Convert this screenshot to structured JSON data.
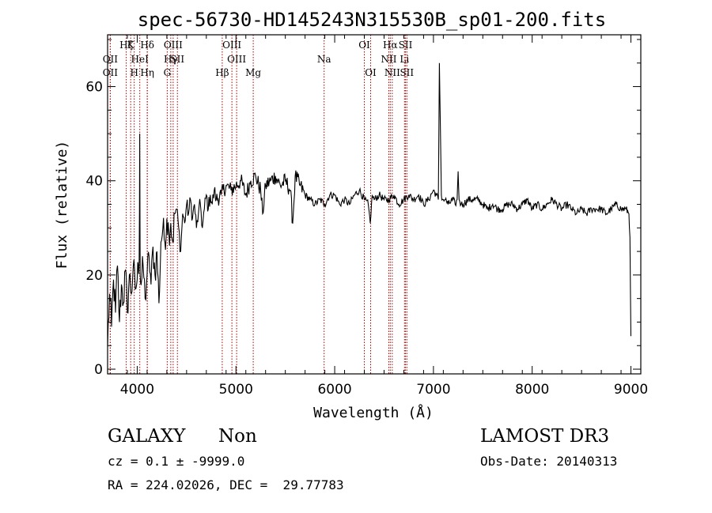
{
  "chart_data": {
    "type": "line",
    "title": "spec-56730-HD145243N315530B_sp01-200.fits",
    "xlabel": "Wavelength (Å)",
    "ylabel": "Flux (relative)",
    "xlim": [
      3700,
      9100
    ],
    "ylim": [
      -1,
      71
    ],
    "xticks": [
      4000,
      5000,
      6000,
      7000,
      8000,
      9000
    ],
    "yticks": [
      0,
      20,
      40,
      60
    ],
    "series": [
      {
        "name": "spectrum",
        "x": [
          3700,
          3720,
          3740,
          3760,
          3780,
          3800,
          3820,
          3840,
          3860,
          3880,
          3900,
          3920,
          3940,
          3960,
          3980,
          4000,
          4010,
          4020,
          4025,
          4030,
          4040,
          4060,
          4080,
          4100,
          4120,
          4140,
          4160,
          4180,
          4200,
          4220,
          4240,
          4260,
          4280,
          4300,
          4320,
          4340,
          4360,
          4380,
          4400,
          4420,
          4440,
          4460,
          4480,
          4500,
          4520,
          4540,
          4560,
          4580,
          4600,
          4620,
          4640,
          4660,
          4680,
          4700,
          4720,
          4740,
          4760,
          4780,
          4800,
          4850,
          4900,
          4950,
          5000,
          5050,
          5100,
          5150,
          5200,
          5250,
          5270,
          5300,
          5350,
          5400,
          5450,
          5500,
          5550,
          5575,
          5600,
          5650,
          5700,
          5750,
          5800,
          5850,
          5900,
          5950,
          6000,
          6050,
          6100,
          6150,
          6200,
          6250,
          6300,
          6340,
          6360,
          6380,
          6400,
          6450,
          6500,
          6550,
          6600,
          6650,
          6700,
          6750,
          6800,
          6850,
          6900,
          6950,
          7000,
          7030,
          7050,
          7060,
          7070,
          7080,
          7090,
          7100,
          7120,
          7150,
          7200,
          7220,
          7240,
          7250,
          7260,
          7280,
          7300,
          7350,
          7400,
          7450,
          7500,
          7550,
          7600,
          7650,
          7700,
          7750,
          7800,
          7850,
          7900,
          7950,
          8000,
          8050,
          8100,
          8150,
          8200,
          8250,
          8300,
          8350,
          8400,
          8450,
          8500,
          8550,
          8600,
          8650,
          8700,
          8750,
          8800,
          8850,
          8900,
          8950,
          8980,
          8990,
          9000
        ],
        "y": [
          5,
          16,
          9,
          19,
          12,
          22,
          10,
          18,
          14,
          21,
          12,
          20,
          16,
          22,
          17,
          19,
          22,
          23,
          50,
          20,
          18,
          22,
          15,
          20,
          24,
          18,
          26,
          20,
          25,
          14,
          27,
          30,
          27,
          32,
          29,
          31,
          27,
          33,
          34,
          30,
          25,
          33,
          31,
          35,
          33,
          36,
          32,
          35,
          30,
          33,
          35,
          30,
          34,
          37,
          34,
          37,
          35,
          38,
          36,
          37,
          39,
          38,
          39,
          40,
          37,
          40,
          41,
          38,
          33,
          39,
          40,
          41,
          39,
          40,
          38,
          31,
          41,
          39,
          37,
          36,
          35,
          36,
          35,
          37,
          37,
          35,
          36,
          35,
          37,
          38,
          36,
          35,
          31,
          37,
          36,
          37,
          36,
          36,
          37,
          35,
          36,
          37,
          36,
          37,
          35,
          36,
          38,
          37,
          36,
          65,
          52,
          37,
          36,
          36,
          36,
          35,
          36,
          35,
          36,
          42,
          36,
          35,
          35,
          36,
          36,
          36,
          35,
          34,
          35,
          34,
          34,
          35,
          35,
          34,
          35,
          36,
          34,
          35,
          34,
          35,
          36,
          35,
          34,
          35,
          34,
          33,
          34,
          33,
          34,
          34,
          34,
          33,
          34,
          35,
          34,
          34,
          33,
          28,
          7
        ]
      }
    ],
    "line_markers": [
      {
        "wavelength": 3727,
        "label": "OII",
        "row": 2
      },
      {
        "wavelength": 3727,
        "label": "OII",
        "row": 3
      },
      {
        "wavelength": 3889,
        "label": "Hζ",
        "row": 1
      },
      {
        "wavelength": 3934,
        "label": "K",
        "row": 1
      },
      {
        "wavelength": 3970,
        "label": "H",
        "row": 3
      },
      {
        "wavelength": 4026,
        "label": "HeI",
        "row": 2
      },
      {
        "wavelength": 4102,
        "label": "Hδ",
        "row": 1
      },
      {
        "wavelength": 4102,
        "label": "Hη",
        "row": 3
      },
      {
        "wavelength": 4340,
        "label": "Hγ",
        "row": 2
      },
      {
        "wavelength": 4304,
        "label": "G",
        "row": 3
      },
      {
        "wavelength": 4364,
        "label": "OIII",
        "row": 1
      },
      {
        "wavelength": 4407,
        "label": "SII",
        "row": 2
      },
      {
        "wavelength": 4861,
        "label": "Hβ",
        "row": 3
      },
      {
        "wavelength": 4959,
        "label": "OIII",
        "row": 1
      },
      {
        "wavelength": 5007,
        "label": "OIII",
        "row": 2
      },
      {
        "wavelength": 5175,
        "label": "Mg",
        "row": 3
      },
      {
        "wavelength": 5893,
        "label": "Na",
        "row": 2
      },
      {
        "wavelength": 6300,
        "label": "OI",
        "row": 1
      },
      {
        "wavelength": 6364,
        "label": "OI",
        "row": 3
      },
      {
        "wavelength": 6548,
        "label": "NII",
        "row": 2
      },
      {
        "wavelength": 6563,
        "label": "Hα",
        "row": 1
      },
      {
        "wavelength": 6583,
        "label": "NII",
        "row": 3
      },
      {
        "wavelength": 6707,
        "label": "Li",
        "row": 2
      },
      {
        "wavelength": 6717,
        "label": "SII",
        "row": 1
      },
      {
        "wavelength": 6731,
        "label": "SII",
        "row": 3
      }
    ],
    "colors": {
      "spectrum": "#000000",
      "marker": "#aa0000"
    }
  },
  "info": {
    "class": "GALAXY",
    "subclass": "Non",
    "survey": "LAMOST DR3",
    "cz": "cz = 0.1 ± -9999.0",
    "obs_date": "Obs-Date: 20140313",
    "radec": "RA = 224.02026, DEC =  29.77783"
  }
}
